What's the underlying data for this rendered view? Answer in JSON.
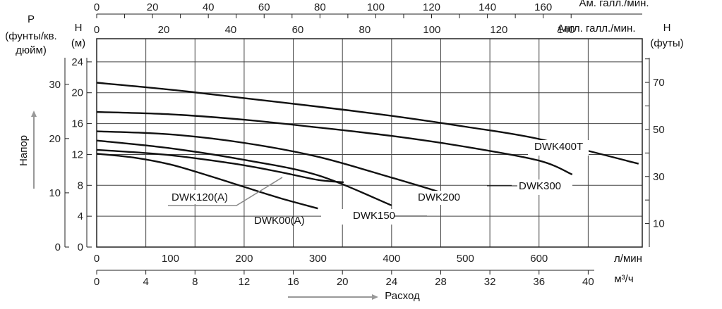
{
  "chart_data": {
    "type": "line",
    "title": "",
    "xlabel": "Расход",
    "ylabel": "Напор",
    "axes": {
      "flow_lpm": {
        "label": "л/мин",
        "ticks": [
          0,
          100,
          200,
          300,
          400,
          500,
          600
        ],
        "range": [
          0,
          740
        ]
      },
      "flow_m3h": {
        "label": "м³/ч",
        "ticks": [
          0,
          4,
          8,
          12,
          16,
          20,
          24,
          28,
          32,
          36,
          40
        ],
        "range": [
          0,
          44.4
        ]
      },
      "flow_us_gpm": {
        "label": "Ам. галл./мин.",
        "ticks": [
          0,
          20,
          40,
          60,
          80,
          100,
          120,
          140,
          160
        ]
      },
      "flow_imp_gpm": {
        "label": "Англ. галл./мин.",
        "ticks": [
          0,
          20,
          40,
          60,
          80,
          100,
          120,
          140
        ]
      },
      "head_m": {
        "label": "H\n(м)",
        "ticks": [
          0,
          4,
          8,
          12,
          16,
          20,
          24
        ],
        "range": [
          0,
          27
        ]
      },
      "pressure_psi": {
        "label": "P\n(фунты/кв.\nдюйм)",
        "ticks": [
          0,
          10,
          20,
          30
        ]
      },
      "head_ft": {
        "label": "H\n(футы)",
        "ticks": [
          10,
          30,
          50,
          70
        ]
      }
    },
    "grid": true,
    "legend": "none",
    "series": [
      {
        "name": "DWK00(A)",
        "x": [
          0,
          50,
          100,
          150,
          200,
          250,
          300
        ],
        "y": [
          12.1,
          11.6,
          10.7,
          9.3,
          7.8,
          6.3,
          5.0
        ]
      },
      {
        "name": "DWK120(A)",
        "x": [
          0,
          50,
          100,
          150,
          200,
          250,
          300,
          335
        ],
        "y": [
          12.6,
          12.3,
          11.9,
          11.3,
          10.6,
          9.7,
          8.7,
          8.4
        ]
      },
      {
        "name": "DWK150",
        "x": [
          0,
          100,
          200,
          300,
          400
        ],
        "y": [
          13.8,
          12.8,
          11.3,
          9.3,
          5.4
        ]
      },
      {
        "name": "DWK200",
        "x": [
          0,
          100,
          200,
          300,
          400,
          470
        ],
        "y": [
          15.0,
          14.6,
          13.5,
          11.7,
          9.0,
          7.0
        ]
      },
      {
        "name": "DWK300",
        "x": [
          0,
          100,
          200,
          300,
          400,
          500,
          600,
          645
        ],
        "y": [
          17.5,
          17.2,
          16.5,
          15.5,
          14.4,
          13.0,
          11.2,
          9.4
        ]
      },
      {
        "name": "DWK400T",
        "x": [
          0,
          100,
          200,
          300,
          400,
          500,
          600,
          735
        ],
        "y": [
          21.3,
          20.4,
          19.3,
          18.2,
          17.0,
          15.6,
          14.0,
          10.8
        ]
      }
    ],
    "curve_labels": [
      "DWK00(A)",
      "DWK120(A)",
      "DWK150",
      "DWK200",
      "DWK300",
      "DWK400T"
    ]
  },
  "labels": {
    "xlabel": "Расход",
    "ylabel": "Напор",
    "flow_lpm": "л/мин",
    "flow_m3h": "м³/ч",
    "flow_us_gpm": "Ам. галл./мин.",
    "flow_imp_gpm": "Англ. галл./мин.",
    "p_title": "P",
    "p_unit_1": "(фунты/кв.",
    "p_unit_2": "дюйм)",
    "h_left_title": "H",
    "h_left_unit": "(м)",
    "h_right_title": "H",
    "h_right_unit": "(футы)"
  }
}
